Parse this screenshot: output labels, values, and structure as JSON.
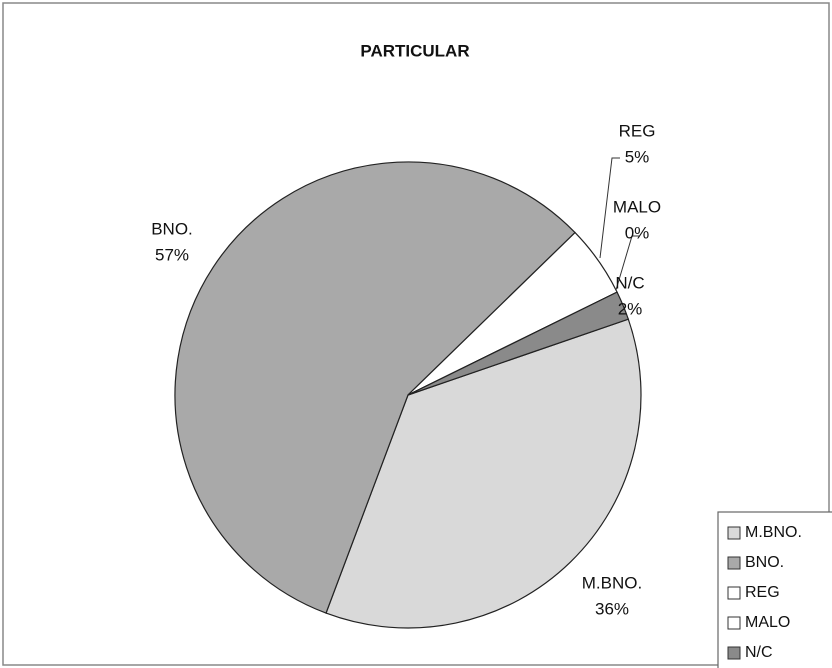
{
  "chart_data": {
    "type": "pie",
    "title": "PARTICULAR",
    "categories": [
      "M.BNO.",
      "BNO.",
      "REG",
      "MALO",
      "N/C"
    ],
    "values": [
      36,
      57,
      5,
      0,
      2
    ],
    "value_labels": [
      "36%",
      "57%",
      "5%",
      "0%",
      "2%"
    ],
    "colors": [
      "#d9d9d9",
      "#a9a9a9",
      "#ffffff",
      "#ffffff",
      "#8a8a8a"
    ],
    "legend": "bottom-right"
  }
}
